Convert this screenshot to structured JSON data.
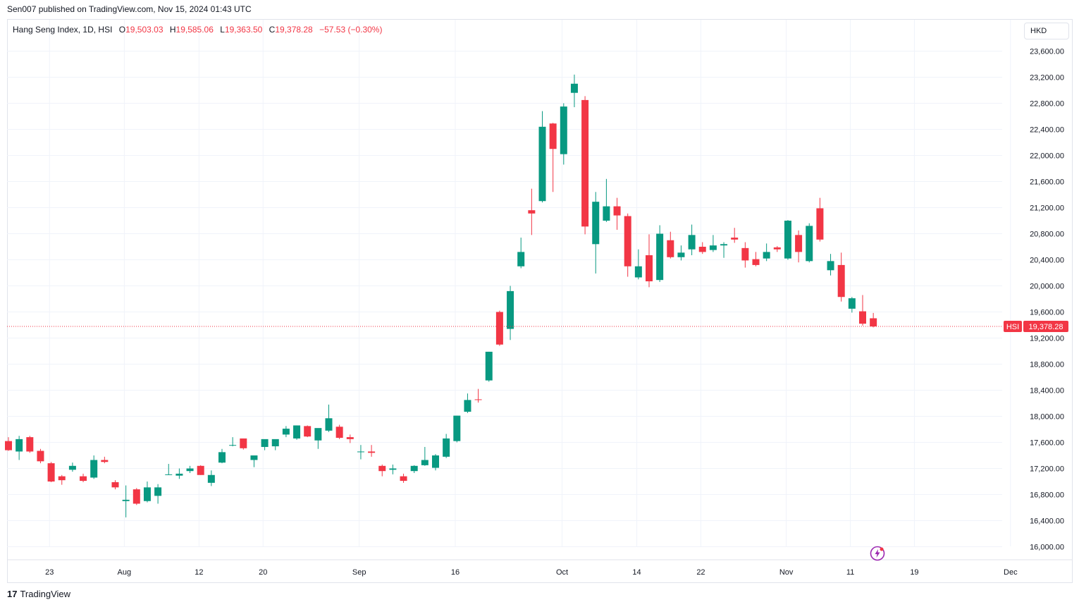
{
  "header": {
    "published": "Sen007 published on TradingView.com, Nov 15, 2024 01:43 UTC"
  },
  "legend": {
    "symbol": "Hang Seng Index, 1D, HSI",
    "o_label": "O",
    "o_value": "19,503.03",
    "h_label": "H",
    "h_value": "19,585.06",
    "l_label": "L",
    "l_value": "19,363.50",
    "c_label": "C",
    "c_value": "19,378.28",
    "change": "−57.53 (−0.30%)"
  },
  "currency_button": "HKD",
  "footer": {
    "brand": "TradingView",
    "brand_mark": "17"
  },
  "colors": {
    "up": "#089981",
    "down": "#f23645",
    "grid": "#f0f3fa",
    "text": "#131722"
  },
  "chart_data": {
    "type": "candlestick",
    "title": "Hang Seng Index, 1D, HSI",
    "currency": "HKD",
    "ylim": [
      15800,
      23800
    ],
    "y_ticks": [
      16000,
      16400,
      16800,
      17200,
      17600,
      18000,
      18400,
      18800,
      19200,
      19600,
      20000,
      20400,
      20800,
      21200,
      21600,
      22000,
      22400,
      22800,
      23200,
      23600
    ],
    "y_tick_labels": [
      "16,000.00",
      "16,400.00",
      "16,800.00",
      "17,200.00",
      "17,600.00",
      "18,000.00",
      "18,400.00",
      "18,800.00",
      "19,200.00",
      "19,600.00",
      "20,000.00",
      "20,400.00",
      "20,800.00",
      "21,200.00",
      "21,600.00",
      "22,000.00",
      "22,400.00",
      "22,800.00",
      "23,200.00",
      "23,600.00"
    ],
    "x_ticks": [
      {
        "label": "23",
        "index": 2
      },
      {
        "label": "Aug",
        "index": 9
      },
      {
        "label": "12",
        "index": 16
      },
      {
        "label": "20",
        "index": 22
      },
      {
        "label": "Sep",
        "index": 31
      },
      {
        "label": "16",
        "index": 40
      },
      {
        "label": "Oct",
        "index": 50
      },
      {
        "label": "14",
        "index": 57
      },
      {
        "label": "22",
        "index": 63
      },
      {
        "label": "Nov",
        "index": 71
      },
      {
        "label": "11",
        "index": 77
      },
      {
        "label": "19",
        "index": 83
      },
      {
        "label": "Dec",
        "index": 92
      }
    ],
    "last_price": {
      "label": "HSI",
      "value": 19378.28,
      "text": "19,378.28"
    },
    "grid": true,
    "candles": [
      {
        "o": 17620,
        "h": 17680,
        "l": 17470,
        "c": 17480
      },
      {
        "o": 17460,
        "h": 17700,
        "l": 17330,
        "c": 17650
      },
      {
        "o": 17680,
        "h": 17700,
        "l": 17440,
        "c": 17460
      },
      {
        "o": 17470,
        "h": 17500,
        "l": 17280,
        "c": 17310
      },
      {
        "o": 17280,
        "h": 17300,
        "l": 16990,
        "c": 17000
      },
      {
        "o": 17080,
        "h": 17100,
        "l": 16950,
        "c": 17020
      },
      {
        "o": 17180,
        "h": 17290,
        "l": 17150,
        "c": 17240
      },
      {
        "o": 17080,
        "h": 17120,
        "l": 16990,
        "c": 17010
      },
      {
        "o": 17060,
        "h": 17400,
        "l": 17040,
        "c": 17330
      },
      {
        "o": 17330,
        "h": 17380,
        "l": 17280,
        "c": 17300
      },
      {
        "o": 16990,
        "h": 17020,
        "l": 16880,
        "c": 16910
      },
      {
        "o": 16700,
        "h": 16940,
        "l": 16450,
        "c": 16720
      },
      {
        "o": 16880,
        "h": 16900,
        "l": 16640,
        "c": 16660
      },
      {
        "o": 16700,
        "h": 17000,
        "l": 16680,
        "c": 16910
      },
      {
        "o": 16780,
        "h": 16960,
        "l": 16660,
        "c": 16910
      },
      {
        "o": 17110,
        "h": 17270,
        "l": 17100,
        "c": 17110
      },
      {
        "o": 17090,
        "h": 17200,
        "l": 17040,
        "c": 17120
      },
      {
        "o": 17160,
        "h": 17240,
        "l": 17130,
        "c": 17200
      },
      {
        "o": 17240,
        "h": 17250,
        "l": 17100,
        "c": 17100
      },
      {
        "o": 16980,
        "h": 17170,
        "l": 16930,
        "c": 17100
      },
      {
        "o": 17290,
        "h": 17500,
        "l": 17280,
        "c": 17450
      },
      {
        "o": 17560,
        "h": 17680,
        "l": 17540,
        "c": 17560
      },
      {
        "o": 17660,
        "h": 17660,
        "l": 17490,
        "c": 17510
      },
      {
        "o": 17330,
        "h": 17400,
        "l": 17220,
        "c": 17400
      },
      {
        "o": 17530,
        "h": 17640,
        "l": 17480,
        "c": 17650
      },
      {
        "o": 17540,
        "h": 17600,
        "l": 17480,
        "c": 17650
      },
      {
        "o": 17720,
        "h": 17850,
        "l": 17680,
        "c": 17810
      },
      {
        "o": 17660,
        "h": 17860,
        "l": 17640,
        "c": 17860
      },
      {
        "o": 17850,
        "h": 17860,
        "l": 17680,
        "c": 17690
      },
      {
        "o": 17630,
        "h": 17780,
        "l": 17500,
        "c": 17820
      },
      {
        "o": 17780,
        "h": 18180,
        "l": 17760,
        "c": 17970
      },
      {
        "o": 17840,
        "h": 17870,
        "l": 17650,
        "c": 17670
      },
      {
        "o": 17680,
        "h": 17720,
        "l": 17590,
        "c": 17650
      },
      {
        "o": 17460,
        "h": 17560,
        "l": 17340,
        "c": 17460
      },
      {
        "o": 17460,
        "h": 17560,
        "l": 17380,
        "c": 17440
      },
      {
        "o": 17240,
        "h": 17260,
        "l": 17080,
        "c": 17160
      },
      {
        "o": 17180,
        "h": 17260,
        "l": 17110,
        "c": 17200
      },
      {
        "o": 17080,
        "h": 17120,
        "l": 16980,
        "c": 17010
      },
      {
        "o": 17160,
        "h": 17250,
        "l": 17130,
        "c": 17240
      },
      {
        "o": 17250,
        "h": 17530,
        "l": 17240,
        "c": 17330
      },
      {
        "o": 17210,
        "h": 17420,
        "l": 17170,
        "c": 17400
      },
      {
        "o": 17380,
        "h": 17730,
        "l": 17360,
        "c": 17660
      },
      {
        "o": 17620,
        "h": 18010,
        "l": 17600,
        "c": 18010
      },
      {
        "o": 18070,
        "h": 18350,
        "l": 18050,
        "c": 18250
      },
      {
        "o": 18260,
        "h": 18420,
        "l": 18210,
        "c": 18250
      },
      {
        "o": 18550,
        "h": 18990,
        "l": 18530,
        "c": 18990
      },
      {
        "o": 19600,
        "h": 19620,
        "l": 19080,
        "c": 19100
      },
      {
        "o": 19340,
        "h": 20000,
        "l": 19170,
        "c": 19920
      },
      {
        "o": 20300,
        "h": 20740,
        "l": 20270,
        "c": 20520
      },
      {
        "o": 21160,
        "h": 21490,
        "l": 20780,
        "c": 21110
      },
      {
        "o": 21300,
        "h": 22680,
        "l": 21280,
        "c": 22440
      },
      {
        "o": 22490,
        "h": 22500,
        "l": 21440,
        "c": 22100
      },
      {
        "o": 22020,
        "h": 22800,
        "l": 21860,
        "c": 22750
      },
      {
        "o": 22960,
        "h": 23240,
        "l": 22740,
        "c": 23100
      },
      {
        "o": 22850,
        "h": 22910,
        "l": 20790,
        "c": 20910
      },
      {
        "o": 20640,
        "h": 21440,
        "l": 20190,
        "c": 21290
      },
      {
        "o": 21000,
        "h": 21640,
        "l": 20980,
        "c": 21220
      },
      {
        "o": 21220,
        "h": 21350,
        "l": 20860,
        "c": 21080
      },
      {
        "o": 21070,
        "h": 21110,
        "l": 20140,
        "c": 20300
      },
      {
        "o": 20130,
        "h": 20560,
        "l": 20100,
        "c": 20300
      },
      {
        "o": 20470,
        "h": 20790,
        "l": 19980,
        "c": 20070
      },
      {
        "o": 20090,
        "h": 20930,
        "l": 20060,
        "c": 20800
      },
      {
        "o": 20700,
        "h": 20830,
        "l": 20420,
        "c": 20440
      },
      {
        "o": 20440,
        "h": 20620,
        "l": 20390,
        "c": 20510
      },
      {
        "o": 20560,
        "h": 20940,
        "l": 20470,
        "c": 20780
      },
      {
        "o": 20600,
        "h": 20670,
        "l": 20490,
        "c": 20520
      },
      {
        "o": 20550,
        "h": 20780,
        "l": 20520,
        "c": 20620
      },
      {
        "o": 20620,
        "h": 20670,
        "l": 20430,
        "c": 20640
      },
      {
        "o": 20740,
        "h": 20890,
        "l": 20660,
        "c": 20710
      },
      {
        "o": 20580,
        "h": 20670,
        "l": 20280,
        "c": 20390
      },
      {
        "o": 20410,
        "h": 20520,
        "l": 20300,
        "c": 20320
      },
      {
        "o": 20420,
        "h": 20650,
        "l": 20380,
        "c": 20520
      },
      {
        "o": 20590,
        "h": 20610,
        "l": 20520,
        "c": 20560
      },
      {
        "o": 20420,
        "h": 21010,
        "l": 20400,
        "c": 21000
      },
      {
        "o": 20780,
        "h": 20850,
        "l": 20360,
        "c": 20520
      },
      {
        "o": 20380,
        "h": 20960,
        "l": 20360,
        "c": 20920
      },
      {
        "o": 21190,
        "h": 21350,
        "l": 20680,
        "c": 20710
      },
      {
        "o": 20240,
        "h": 20490,
        "l": 20160,
        "c": 20380
      },
      {
        "o": 20320,
        "h": 20510,
        "l": 19760,
        "c": 19830
      },
      {
        "o": 19650,
        "h": 19830,
        "l": 19590,
        "c": 19810
      },
      {
        "o": 19610,
        "h": 19860,
        "l": 19390,
        "c": 19420
      },
      {
        "o": 19503.03,
        "h": 19585.06,
        "l": 19363.5,
        "c": 19378.28
      }
    ]
  }
}
